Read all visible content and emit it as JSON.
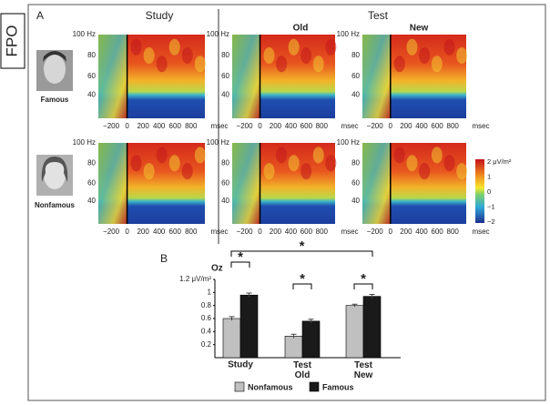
{
  "side_label": "FPO",
  "panel_a": {
    "label": "A",
    "study_title": "Study",
    "test_title": "Test",
    "old_title": "Old",
    "new_title": "New",
    "faces": [
      "Famous",
      "Nonfamous"
    ],
    "freq_ticks": [
      "100 Hz",
      "80",
      "60",
      "40"
    ],
    "time_ticks": [
      "−200",
      "0",
      "200",
      "400",
      "600",
      "800",
      "msec"
    ],
    "colorbar_ticks": [
      "2 μV/m²",
      "1",
      "0",
      "−1",
      "−2"
    ]
  },
  "chart_data": {
    "type": "bar",
    "panel_label": "B",
    "channel": "Oz",
    "categories": [
      "Study",
      "Test Old",
      "Test New"
    ],
    "series": [
      {
        "name": "Nonfamous",
        "color": "#c0c0c0",
        "values": [
          0.6,
          0.33,
          0.8
        ],
        "errors": [
          0.03,
          0.03,
          0.02
        ]
      },
      {
        "name": "Famous",
        "color": "#1a1a1a",
        "values": [
          0.96,
          0.56,
          0.94
        ],
        "errors": [
          0.03,
          0.03,
          0.03
        ]
      }
    ],
    "ylim": [
      0,
      1.2
    ],
    "yticks": [
      0.2,
      0.4,
      0.6,
      0.8,
      1,
      {
        "value": 1.2,
        "label": "1.2 μV/m²"
      }
    ],
    "significance": [
      {
        "text": "*",
        "color": "#000000"
      },
      {
        "text": "*",
        "color": "#999999"
      },
      {
        "text": "*",
        "color": "#999999"
      },
      {
        "text": "*",
        "color": "#000000"
      }
    ]
  }
}
